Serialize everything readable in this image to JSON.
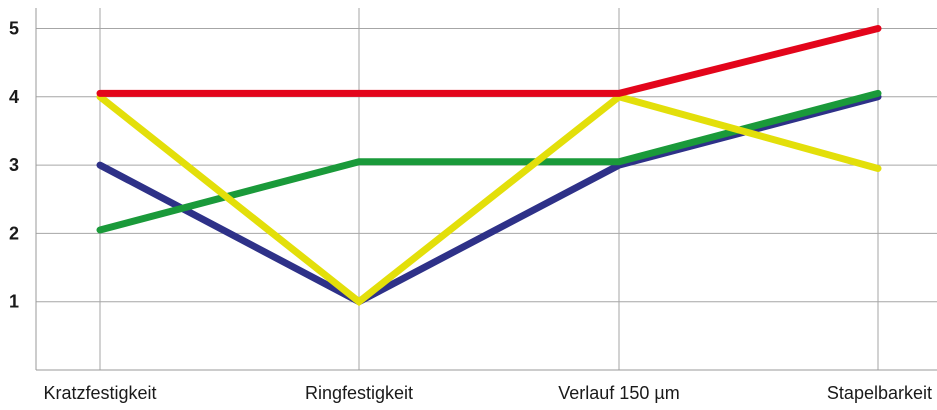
{
  "chart_data": {
    "type": "line",
    "title": "",
    "xlabel": "",
    "ylabel": "",
    "categories": [
      "Kratzfestigkeit",
      "Ringfestigkeit",
      "Verlauf 150 µm",
      "Stapelbarkeit"
    ],
    "y_ticks": [
      1,
      2,
      3,
      4,
      5
    ],
    "ylim": [
      0,
      5.3
    ],
    "grid": true,
    "legend": "none",
    "series": [
      {
        "color": "#2e3188",
        "values": [
          3,
          1,
          3,
          4
        ]
      },
      {
        "color": "#1a9a3a",
        "values": [
          2.05,
          3.05,
          3.05,
          4.05
        ]
      },
      {
        "color": "#e3df0a",
        "values": [
          4,
          1,
          4,
          2.95
        ]
      },
      {
        "color": "#e3051b",
        "values": [
          4.05,
          4.05,
          4.05,
          5
        ]
      }
    ]
  }
}
